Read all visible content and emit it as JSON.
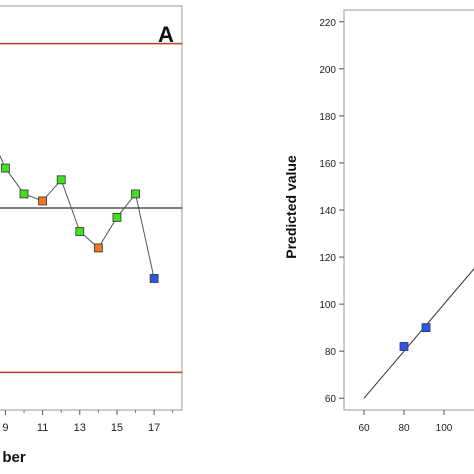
{
  "chart_data": [
    {
      "type": "line",
      "panel_label": "A",
      "xlabel": "ber",
      "ylabel": "",
      "xlim": [
        8.6,
        18.5
      ],
      "ylim": [
        -4.3,
        4.3
      ],
      "x_ticks": [
        9,
        11,
        13,
        15,
        17
      ],
      "x_tick_labels": [
        "9",
        "11",
        "13",
        "15",
        "17"
      ],
      "reference_lines": [
        {
          "value": 3.5,
          "color": "#c0392b"
        },
        {
          "value": 0,
          "color": "#333333"
        },
        {
          "value": -3.5,
          "color": "#c0392b"
        }
      ],
      "points": [
        {
          "x": 9,
          "y": 0.85,
          "color": "#44dd22"
        },
        {
          "x": 10,
          "y": 0.3,
          "color": "#44dd22"
        },
        {
          "x": 11,
          "y": 0.15,
          "color": "#ee7722"
        },
        {
          "x": 12,
          "y": 0.6,
          "color": "#44dd22"
        },
        {
          "x": 13,
          "y": -0.5,
          "color": "#44dd22"
        },
        {
          "x": 14,
          "y": -0.85,
          "color": "#ee7722"
        },
        {
          "x": 15,
          "y": -0.2,
          "color": "#44dd22"
        },
        {
          "x": 16,
          "y": 0.3,
          "color": "#44dd22"
        },
        {
          "x": 17,
          "y": -1.5,
          "color": "#3355dd"
        }
      ],
      "grid": false
    },
    {
      "type": "scatter",
      "xlabel": "",
      "ylabel": "Predicted value",
      "xlim": [
        50,
        120
      ],
      "ylim": [
        55,
        225
      ],
      "x_ticks": [
        60,
        80,
        100
      ],
      "x_tick_labels": [
        "60",
        "80",
        "100"
      ],
      "y_ticks": [
        60,
        80,
        100,
        120,
        140,
        160,
        180,
        200,
        220
      ],
      "y_tick_labels": [
        "60",
        "80",
        "100",
        "120",
        "140",
        "160",
        "180",
        "200",
        "220"
      ],
      "reference_line": {
        "from": [
          60,
          60
        ],
        "to": [
          120,
          120
        ]
      },
      "points": [
        {
          "x": 80,
          "y": 82,
          "color": "#3355dd"
        },
        {
          "x": 91,
          "y": 90,
          "color": "#3355dd"
        }
      ],
      "grid": false
    }
  ]
}
